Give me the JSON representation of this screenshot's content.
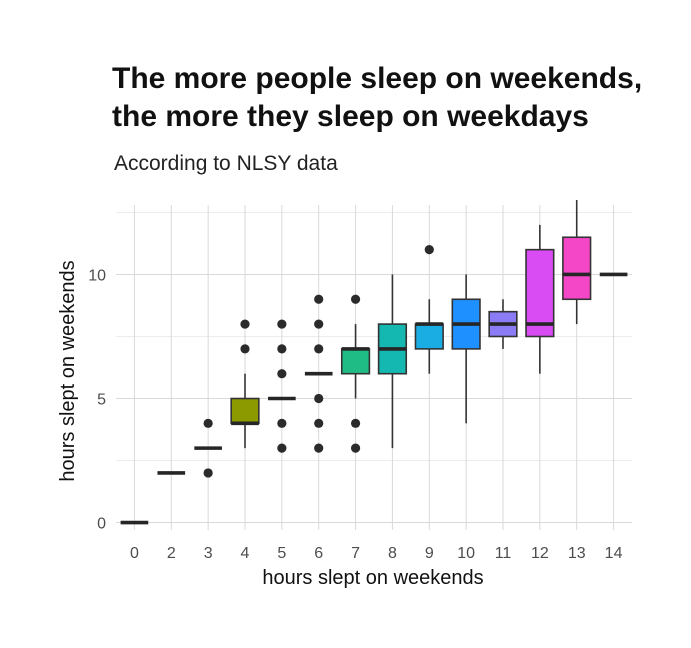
{
  "chart_data": {
    "type": "boxplot",
    "title_lines": [
      "The more people sleep on weekends,",
      "the more they sleep on weekdays"
    ],
    "subtitle": "According to NLSY data",
    "xlabel": "hours slept on weekends",
    "ylabel": "hours slept on weekends",
    "ylim": [
      -0.3,
      12.8
    ],
    "yticks": [
      0,
      5,
      10
    ],
    "grid": true,
    "legend": "none",
    "categories": [
      "0",
      "2",
      "3",
      "4",
      "5",
      "6",
      "7",
      "8",
      "9",
      "10",
      "11",
      "12",
      "13",
      "14"
    ],
    "boxes": [
      {
        "category": "0",
        "min": 0,
        "q1": 0,
        "median": 0,
        "q3": 0,
        "max": 0,
        "outliers": [],
        "color": "#F8766D"
      },
      {
        "category": "2",
        "min": 2,
        "q1": 2,
        "median": 2,
        "q3": 2,
        "max": 2,
        "outliers": [],
        "color": "#E18A00"
      },
      {
        "category": "3",
        "min": 3,
        "q1": 3,
        "median": 3,
        "q3": 3,
        "max": 3,
        "outliers": [
          2,
          4
        ],
        "color": "#BE9C00"
      },
      {
        "category": "4",
        "min": 3,
        "q1": 4,
        "median": 4,
        "q3": 5,
        "max": 6,
        "outliers": [
          7,
          8
        ],
        "color": "#8C9A00"
      },
      {
        "category": "5",
        "min": 5,
        "q1": 5,
        "median": 5,
        "q3": 5,
        "max": 5,
        "outliers": [
          3,
          4,
          6,
          7,
          8
        ],
        "color": "#24B700"
      },
      {
        "category": "6",
        "min": 6,
        "q1": 6,
        "median": 6,
        "q3": 6,
        "max": 6,
        "outliers": [
          3,
          4,
          5,
          7,
          8,
          9
        ],
        "color": "#00BE70"
      },
      {
        "category": "7",
        "min": 5,
        "q1": 6,
        "median": 7,
        "q3": 7,
        "max": 8,
        "outliers": [
          3,
          4,
          9
        ],
        "color": "#1FBC85"
      },
      {
        "category": "8",
        "min": 3,
        "q1": 6,
        "median": 7,
        "q3": 8,
        "max": 10,
        "outliers": [],
        "color": "#14B8B0"
      },
      {
        "category": "9",
        "min": 6,
        "q1": 7,
        "median": 8,
        "q3": 8,
        "max": 9,
        "outliers": [
          11
        ],
        "color": "#1AADE4"
      },
      {
        "category": "10",
        "min": 4,
        "q1": 7,
        "median": 8,
        "q3": 9,
        "max": 10,
        "outliers": [],
        "color": "#1E90FF"
      },
      {
        "category": "11",
        "min": 7,
        "q1": 7.5,
        "median": 8,
        "q3": 8.5,
        "max": 9,
        "outliers": [],
        "color": "#8B7CF6"
      },
      {
        "category": "12",
        "min": 6,
        "q1": 7.5,
        "median": 8,
        "q3": 11,
        "max": 12,
        "outliers": [],
        "color": "#D94BF3"
      },
      {
        "category": "13",
        "min": 8,
        "q1": 9,
        "median": 10,
        "q3": 11.5,
        "max": 13,
        "outliers": [],
        "color": "#F447C8"
      },
      {
        "category": "14",
        "min": 10,
        "q1": 10,
        "median": 10,
        "q3": 10,
        "max": 10,
        "outliers": [],
        "color": "#FF3E9E"
      }
    ]
  }
}
